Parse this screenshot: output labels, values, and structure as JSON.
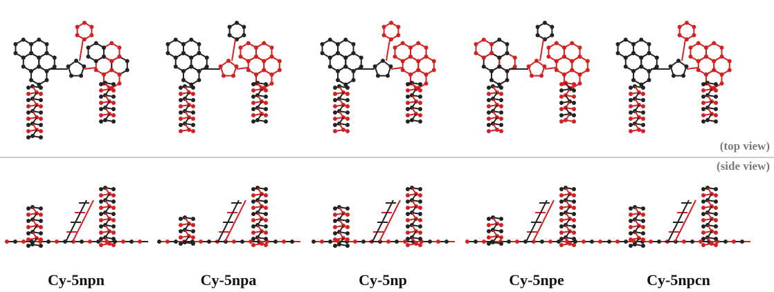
{
  "views": {
    "top": "(top view)",
    "side": "(side view)"
  },
  "molecules": [
    {
      "label": "Cy-5npn"
    },
    {
      "label": "Cy-5npa"
    },
    {
      "label": "Cy-5np"
    },
    {
      "label": "Cy-5npe"
    },
    {
      "label": "Cy-5npcn"
    }
  ]
}
